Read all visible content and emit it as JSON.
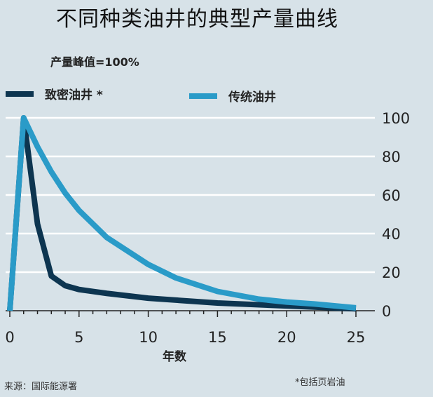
{
  "title": "不同种类油井的典型产量曲线",
  "subtitle": "产量峰值=100%",
  "legend": [
    {
      "label": "致密油井 *",
      "color": "#0d3550"
    },
    {
      "label": "传统油井",
      "color": "#2a9bc8"
    }
  ],
  "x_axis": {
    "label": "年数",
    "ticks": [
      "0",
      "5",
      "10",
      "15",
      "20",
      "25"
    ]
  },
  "y_axis": {
    "ticks": [
      "0",
      "20",
      "40",
      "60",
      "80",
      "100"
    ]
  },
  "source": "来源：国际能源署",
  "footnote": "*包括页岩油",
  "chart_data": {
    "type": "line",
    "title": "不同种类油井的典型产量曲线",
    "subtitle": "产量峰值=100%",
    "xlabel": "年数",
    "ylabel": "",
    "xlim": [
      0,
      25
    ],
    "ylim": [
      0,
      100
    ],
    "x_ticks": [
      0,
      5,
      10,
      15,
      20,
      25
    ],
    "y_ticks": [
      0,
      20,
      40,
      60,
      80,
      100
    ],
    "grid": "horizontal",
    "legend_position": "top",
    "y_axis_side": "right",
    "series": [
      {
        "name": "致密油井 *",
        "color": "#0d3550",
        "x": [
          0,
          1,
          2,
          3,
          4,
          5,
          7,
          10,
          15,
          20,
          25
        ],
        "values": [
          0,
          100,
          45,
          18,
          13,
          11,
          9,
          6.5,
          4,
          2.5,
          1
        ]
      },
      {
        "name": "传统油井",
        "color": "#2a9bc8",
        "x": [
          0,
          1,
          2,
          3,
          4,
          5,
          7,
          10,
          12,
          15,
          18,
          20,
          22,
          25
        ],
        "values": [
          0,
          100,
          85,
          72,
          61,
          52,
          38,
          24,
          17,
          10,
          6,
          4.5,
          3.5,
          1.5
        ]
      }
    ]
  }
}
